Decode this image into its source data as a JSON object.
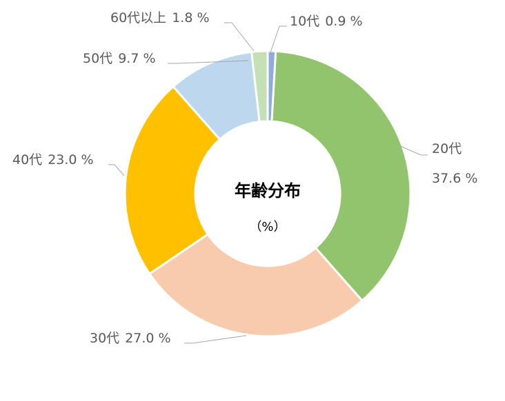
{
  "chart_data": {
    "type": "donut",
    "title": "年齢分布",
    "subtitle": "（%）",
    "categories": [
      "10代",
      "20代",
      "30代",
      "40代",
      "50代",
      "60代以上"
    ],
    "values": [
      0.9,
      37.6,
      27.0,
      23.0,
      9.7,
      1.8
    ],
    "value_labels": [
      "0.9 %",
      "37.6 %",
      "27.0 %",
      "23.0 %",
      "9.7 %",
      "1.8 %"
    ],
    "colors": [
      "#8faadc",
      "#92c46d",
      "#f8cbad",
      "#ffc000",
      "#bdd7ee",
      "#c5e0b4"
    ]
  }
}
